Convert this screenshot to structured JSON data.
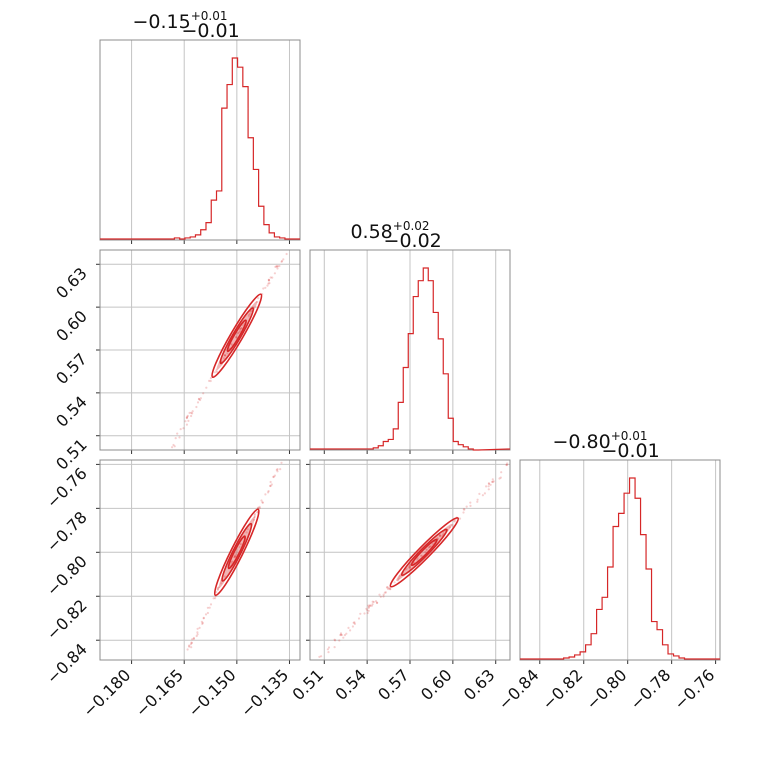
{
  "chart_data": {
    "type": "corner",
    "color": "#d62728",
    "parameters": [
      {
        "title_value": "−0.15",
        "title_err_plus": "+0.01",
        "title_err_minus": "−0.01",
        "range": [
          -0.189,
          -0.132
        ],
        "ticks": [
          {
            "value": -0.18,
            "label": "−0.180"
          },
          {
            "value": -0.165,
            "label": "−0.165"
          },
          {
            "value": -0.15,
            "label": "−0.150"
          },
          {
            "value": -0.135,
            "label": "−0.135"
          }
        ],
        "hist_bin_width": 0.0015,
        "hist_counts": [
          1,
          1,
          2,
          1,
          2,
          3,
          5,
          10,
          17,
          39,
          48,
          129,
          152,
          178,
          169,
          150,
          100,
          69,
          33,
          15,
          7,
          3,
          2,
          1
        ]
      },
      {
        "title_value": "0.58",
        "title_err_plus": "+0.02",
        "title_err_minus": "−0.02",
        "range": [
          0.5,
          0.64
        ],
        "ticks": [
          {
            "value": 0.51,
            "label": "0.51"
          },
          {
            "value": 0.54,
            "label": "0.54"
          },
          {
            "value": 0.57,
            "label": "0.57"
          },
          {
            "value": 0.6,
            "label": "0.60"
          },
          {
            "value": 0.63,
            "label": "0.63"
          }
        ],
        "hist_bin_width": 0.0035,
        "hist_counts": [
          1,
          1,
          1,
          2,
          4,
          8,
          10,
          20,
          45,
          78,
          110,
          145,
          160,
          172,
          160,
          130,
          105,
          72,
          30,
          8,
          5,
          3,
          1,
          0
        ]
      },
      {
        "title_value": "−0.80",
        "title_err_plus": "+0.01",
        "title_err_minus": "−0.01",
        "range": [
          -0.849,
          -0.758
        ],
        "ticks": [
          {
            "value": -0.84,
            "label": "−0.84"
          },
          {
            "value": -0.82,
            "label": "−0.82"
          },
          {
            "value": -0.8,
            "label": "−0.80"
          },
          {
            "value": -0.78,
            "label": "−0.78"
          },
          {
            "value": -0.76,
            "label": "−0.76"
          }
        ],
        "hist_bin_width": 0.0025,
        "hist_counts": [
          1,
          1,
          2,
          3,
          5,
          8,
          15,
          26,
          50,
          62,
          92,
          132,
          145,
          165,
          180,
          160,
          124,
          90,
          38,
          30,
          15,
          6,
          4,
          2,
          1,
          1,
          1
        ]
      }
    ],
    "pairs": [
      {
        "x": 0,
        "y": 1,
        "slope": 4.2,
        "scatter_extent": [
          -0.185,
          -0.132
        ]
      },
      {
        "x": 0,
        "y": 2,
        "slope": 3.2,
        "scatter_extent": [
          -0.185,
          -0.132
        ]
      },
      {
        "x": 1,
        "y": 2,
        "slope": 0.66,
        "scatter_extent": [
          0.505,
          0.64
        ]
      }
    ]
  }
}
